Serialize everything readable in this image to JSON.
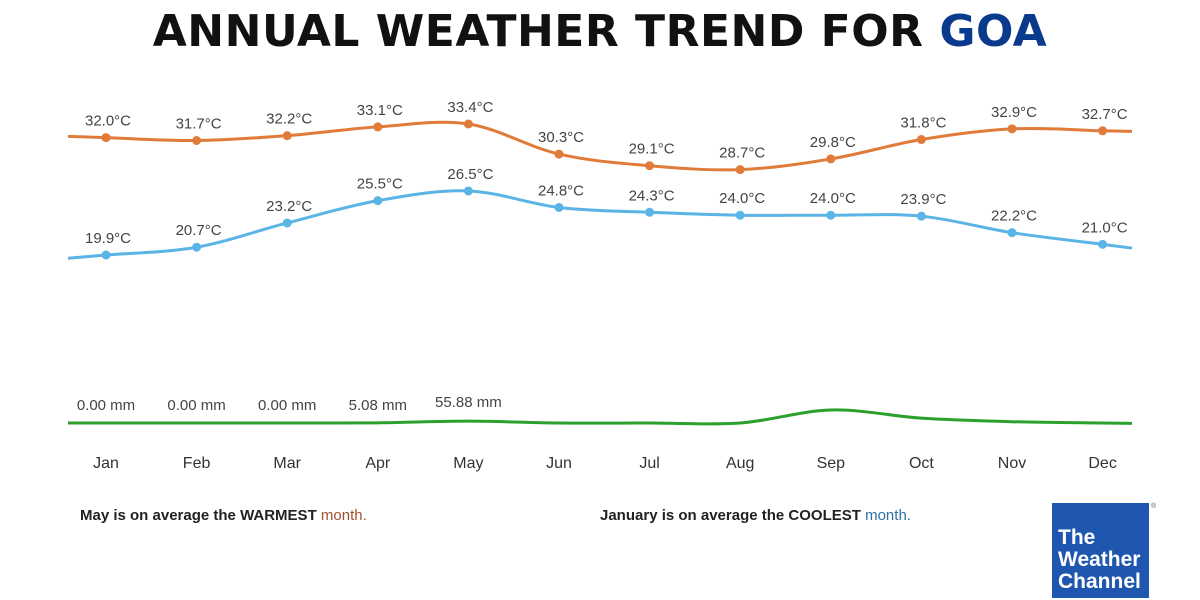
{
  "title": {
    "main": "ANNUAL WEATHER TREND FOR",
    "place": "GOA"
  },
  "chart_data": {
    "type": "line",
    "categories": [
      "Jan",
      "Feb",
      "Mar",
      "Apr",
      "May",
      "Jun",
      "Jul",
      "Aug",
      "Sep",
      "Oct",
      "Nov",
      "Dec"
    ],
    "series": [
      {
        "key": "max_temp",
        "unit": "°C",
        "color": "#e07b39",
        "values": [
          32.0,
          31.7,
          32.2,
          33.1,
          33.4,
          30.3,
          29.1,
          28.7,
          29.8,
          31.8,
          32.9,
          32.7
        ],
        "labels": [
          "32.0°C",
          "31.7°C",
          "32.2°C",
          "33.1°C",
          "33.4°C",
          "30.3°C",
          "29.1°C",
          "28.7°C",
          "29.8°C",
          "31.8°C",
          "32.9°C",
          "32.7°C"
        ]
      },
      {
        "key": "min_temp",
        "unit": "°C",
        "color": "#5ab4e5",
        "values": [
          19.9,
          20.7,
          23.2,
          25.5,
          26.5,
          24.8,
          24.3,
          24.0,
          24.0,
          23.9,
          22.2,
          21.0
        ],
        "labels": [
          "19.9°C",
          "20.7°C",
          "23.2°C",
          "25.5°C",
          "26.5°C",
          "24.8°C",
          "24.3°C",
          "24.0°C",
          "24.0°C",
          "23.9°C",
          "22.2°C",
          "21.0°C"
        ]
      },
      {
        "key": "rainfall",
        "unit": "mm",
        "color": "#2ca02c",
        "values": [
          0.0,
          0.0,
          0.0,
          5.08,
          55.88,
          0.0,
          0.0,
          0.0,
          400,
          150,
          40,
          0.0
        ],
        "labels": [
          "0.00 mm",
          "0.00 mm",
          "0.00 mm",
          "5.08 mm",
          "55.88 mm",
          "",
          "",
          "",
          "",
          "",
          "",
          ""
        ]
      }
    ]
  },
  "facts": {
    "warm_bold": "May is on average the WARMEST",
    "warm_tail": "month.",
    "cool_bold": "January is on average the COOLEST",
    "cool_tail": "month."
  },
  "logo": {
    "line1": "The",
    "line2": "Weather",
    "line3": "Channel",
    "mark": "®"
  }
}
